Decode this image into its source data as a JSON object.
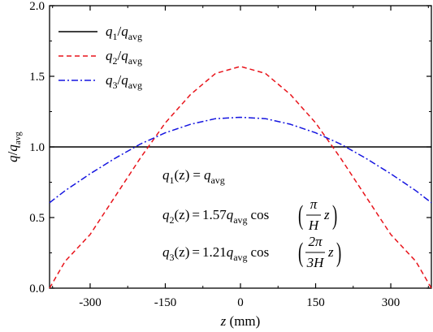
{
  "chart_data": {
    "type": "line",
    "xlabel": "z (mm)",
    "ylabel": "q/q_avg",
    "xlim": [
      -381,
      381
    ],
    "ylim": [
      0,
      2.0
    ],
    "xticks": [
      -300,
      -150,
      0,
      150,
      300
    ],
    "xtick_labels": [
      "-300",
      "-150",
      "0",
      "150",
      "300"
    ],
    "yticks": [
      0,
      0.5,
      1.0,
      1.5,
      2.0
    ],
    "ytick_labels": [
      "0.0",
      "0.5",
      "1.0",
      "1.5",
      "2.0"
    ],
    "grid": false,
    "legend_position": "top-left",
    "series": [
      {
        "name": "q1/qavg",
        "color": "#000000",
        "style": "solid",
        "x": [
          -381,
          -300,
          -200,
          -100,
          0,
          100,
          200,
          300,
          381
        ],
        "values": [
          1,
          1,
          1,
          1,
          1,
          1,
          1,
          1,
          1
        ]
      },
      {
        "name": "q2/qavg",
        "color": "#e8141b",
        "style": "dashed",
        "x": [
          -381,
          -350,
          -300,
          -250,
          -200,
          -150,
          -100,
          -50,
          0,
          50,
          100,
          150,
          200,
          250,
          300,
          350,
          381
        ],
        "values": [
          0.0,
          0.19,
          0.38,
          0.65,
          0.92,
          1.17,
          1.37,
          1.52,
          1.57,
          1.52,
          1.37,
          1.17,
          0.92,
          0.65,
          0.38,
          0.19,
          0.0
        ]
      },
      {
        "name": "q3/qavg",
        "color": "#1515e0",
        "style": "dashdot",
        "x": [
          -381,
          -350,
          -300,
          -250,
          -200,
          -150,
          -100,
          -50,
          0,
          50,
          100,
          150,
          200,
          250,
          300,
          350,
          381
        ],
        "values": [
          0.605,
          0.69,
          0.81,
          0.92,
          1.02,
          1.1,
          1.16,
          1.2,
          1.21,
          1.2,
          1.16,
          1.1,
          1.02,
          0.92,
          0.81,
          0.69,
          0.605
        ]
      }
    ],
    "legend": [
      {
        "base1": "q",
        "sub1": "1",
        "base2": "q",
        "sub2": "avg"
      },
      {
        "base1": "q",
        "sub1": "2",
        "base2": "q",
        "sub2": "avg"
      },
      {
        "base1": "q",
        "sub1": "3",
        "base2": "q",
        "sub2": "avg"
      }
    ],
    "equations": {
      "eq1": {
        "lhs": "q",
        "sub": "1",
        "arg": "(z)",
        "eq": "=",
        "rhs": "q",
        "rhs_sub": "avg"
      },
      "eq2": {
        "lhs": "q",
        "sub": "2",
        "arg": "(z)",
        "eq": "=",
        "coef": "1.57",
        "qv": "q",
        "qv_sub": "avg",
        "cos": "cos",
        "num": "π",
        "den": "H",
        "var": "z"
      },
      "eq3": {
        "lhs": "q",
        "sub": "3",
        "arg": "(z)",
        "eq": "=",
        "coef": "1.21",
        "qv": "q",
        "qv_sub": "avg",
        "cos": "cos",
        "num": "2π",
        "den": "3H",
        "var": "z"
      }
    }
  }
}
